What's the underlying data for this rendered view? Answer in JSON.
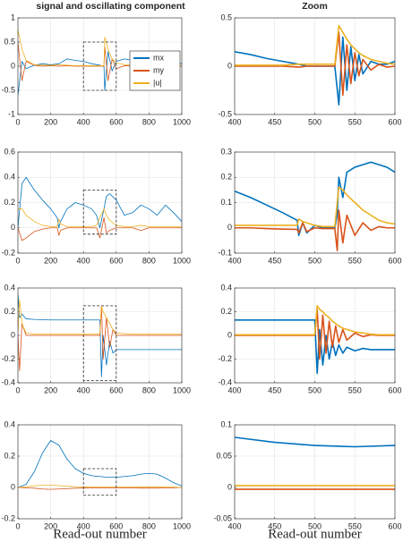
{
  "chart_data": [
    {
      "type": "line",
      "title": "signal and oscillating component",
      "legend": "east",
      "xlim": [
        0,
        1000
      ],
      "xticks": [
        0,
        200,
        400,
        600,
        800,
        1000
      ],
      "ylim": [
        -1,
        1
      ],
      "yticks": [
        -1,
        -0.5,
        0,
        0.5,
        1
      ],
      "grid": true,
      "zoom_box": {
        "x": [
          400,
          600
        ],
        "y": [
          -0.5,
          0.5
        ]
      },
      "x": [
        0,
        25,
        50,
        100,
        150,
        200,
        250,
        300,
        350,
        400,
        450,
        500,
        525,
        530,
        550,
        575,
        600,
        650,
        700,
        750,
        800,
        850,
        900,
        950,
        1000
      ],
      "series": [
        {
          "name": "mx",
          "color": "#0072BD",
          "values": [
            -0.6,
            0.1,
            -0.05,
            0.02,
            0.05,
            0.03,
            0.05,
            0.15,
            0.12,
            0.1,
            0.05,
            0.02,
            0.0,
            -0.5,
            0.3,
            -0.1,
            0.1,
            0.15,
            0.12,
            0.1,
            0.05,
            0.12,
            0.1,
            0.08,
            0.05
          ]
        },
        {
          "name": "my",
          "color": "#D95319",
          "values": [
            0.5,
            -0.3,
            0.1,
            0.02,
            0,
            0.01,
            0,
            0.01,
            0,
            0,
            0,
            0,
            0,
            0.4,
            -0.3,
            0.15,
            -0.05,
            0.01,
            0,
            0,
            0,
            0,
            0,
            0,
            0
          ]
        },
        {
          "name": "|u|",
          "color": "#EDB120",
          "values": [
            0.75,
            0.35,
            0.12,
            0.03,
            0.02,
            0.02,
            0.03,
            0.02,
            0.01,
            0.01,
            0.01,
            0.01,
            0.01,
            0.6,
            0.35,
            0.15,
            0.07,
            0.03,
            0.02,
            0.01,
            0.01,
            0.02,
            0.01,
            0.01,
            0.01
          ]
        }
      ]
    },
    {
      "type": "line",
      "title": "Zoom",
      "xlim": [
        400,
        600
      ],
      "xticks": [
        400,
        450,
        500,
        550,
        600
      ],
      "ylim": [
        -0.5,
        0.5
      ],
      "yticks": [
        -0.5,
        0,
        0.5
      ],
      "grid": true,
      "x": [
        400,
        420,
        440,
        460,
        480,
        490,
        500,
        510,
        520,
        525,
        530,
        535,
        540,
        545,
        550,
        555,
        560,
        570,
        580,
        590,
        600
      ],
      "series": [
        {
          "color": "#0072BD",
          "values": [
            0.15,
            0.12,
            0.08,
            0.05,
            0.02,
            0.0,
            0.0,
            0.0,
            0.0,
            0.0,
            -0.4,
            0.3,
            -0.25,
            0.2,
            -0.15,
            0.12,
            -0.08,
            0.05,
            0.02,
            0.02,
            0.05
          ]
        },
        {
          "color": "#D95319",
          "values": [
            0,
            0,
            0,
            0,
            -0.01,
            0,
            0,
            0,
            0,
            0,
            0.35,
            -0.3,
            0.22,
            -0.18,
            0.14,
            -0.1,
            0.07,
            -0.04,
            0.02,
            -0.01,
            0
          ]
        },
        {
          "color": "#EDB120",
          "values": [
            0.01,
            0.01,
            0.01,
            0.01,
            0.02,
            0.02,
            0.02,
            0.02,
            0.02,
            0.02,
            0.42,
            0.35,
            0.28,
            0.22,
            0.18,
            0.14,
            0.11,
            0.07,
            0.05,
            0.03,
            0.02
          ]
        }
      ]
    },
    {
      "type": "line",
      "xlim": [
        0,
        1000
      ],
      "xticks": [
        0,
        200,
        400,
        600,
        800,
        1000
      ],
      "ylim": [
        -0.2,
        0.6
      ],
      "yticks": [
        -0.2,
        0,
        0.2,
        0.4,
        0.6
      ],
      "grid": true,
      "zoom_box": {
        "x": [
          400,
          600
        ],
        "y": [
          -0.05,
          0.3
        ]
      },
      "x": [
        0,
        25,
        50,
        100,
        150,
        200,
        240,
        250,
        260,
        300,
        350,
        400,
        450,
        480,
        500,
        525,
        540,
        560,
        600,
        650,
        700,
        750,
        800,
        850,
        900,
        950,
        1000
      ],
      "series": [
        {
          "color": "#0072BD",
          "values": [
            0,
            0.35,
            0.4,
            0.3,
            0.22,
            0.15,
            0.08,
            0,
            0.05,
            0.15,
            0.2,
            0.18,
            0.15,
            0.1,
            0,
            0.15,
            0.25,
            0.27,
            0.22,
            0.1,
            0.12,
            0.18,
            0.15,
            0.1,
            0.18,
            0.12,
            0.05
          ]
        },
        {
          "color": "#D95319",
          "values": [
            0,
            -0.1,
            -0.08,
            -0.03,
            -0.01,
            0,
            0,
            -0.06,
            -0.02,
            0,
            0,
            0,
            0,
            0,
            -0.08,
            0.08,
            -0.04,
            -0.02,
            0,
            0,
            0,
            -0.02,
            0,
            0,
            0,
            0,
            0
          ]
        },
        {
          "color": "#EDB120",
          "values": [
            0.15,
            0.15,
            0.1,
            0.05,
            0.02,
            0.01,
            0.01,
            0.07,
            0.03,
            0.01,
            0.01,
            0.01,
            0.01,
            0.02,
            0.08,
            0.15,
            0.1,
            0.06,
            0.02,
            0.01,
            0.01,
            0.02,
            0.01,
            0.01,
            0.01,
            0.01,
            0.01
          ]
        }
      ]
    },
    {
      "type": "line",
      "xlim": [
        400,
        600
      ],
      "xticks": [
        400,
        450,
        500,
        550,
        600
      ],
      "ylim": [
        -0.1,
        0.3
      ],
      "yticks": [
        -0.1,
        0,
        0.1,
        0.2,
        0.3
      ],
      "grid": true,
      "x": [
        400,
        420,
        440,
        460,
        478,
        480,
        485,
        490,
        500,
        510,
        520,
        525,
        528,
        530,
        535,
        540,
        550,
        560,
        570,
        580,
        590,
        600
      ],
      "series": [
        {
          "color": "#0072BD",
          "values": [
            0.145,
            0.12,
            0.09,
            0.06,
            0.03,
            -0.03,
            0.02,
            -0.02,
            0.01,
            0,
            0,
            0,
            0.05,
            0.2,
            0.12,
            0.22,
            0.24,
            0.25,
            0.26,
            0.25,
            0.24,
            0.22
          ]
        },
        {
          "color": "#D95319",
          "values": [
            0,
            0,
            -0.003,
            -0.005,
            -0.006,
            -0.02,
            0.02,
            -0.015,
            0,
            -0.003,
            -0.003,
            -0.003,
            -0.09,
            0.07,
            -0.06,
            0.05,
            -0.03,
            0.02,
            -0.01,
            0.005,
            0,
            0
          ]
        },
        {
          "color": "#EDB120",
          "values": [
            0.01,
            0.01,
            0.01,
            0.01,
            0.01,
            0.035,
            0.025,
            0.02,
            0.01,
            0.005,
            0.005,
            0.005,
            0.1,
            0.16,
            0.15,
            0.13,
            0.1,
            0.07,
            0.05,
            0.03,
            0.02,
            0.015
          ]
        }
      ]
    },
    {
      "type": "line",
      "xlim": [
        0,
        1000
      ],
      "xticks": [
        0,
        200,
        400,
        600,
        800,
        1000
      ],
      "ylim": [
        -0.4,
        0.4
      ],
      "yticks": [
        -0.4,
        -0.2,
        0,
        0.2,
        0.4
      ],
      "grid": true,
      "zoom_box": {
        "x": [
          400,
          600
        ],
        "y": [
          -0.38,
          0.25
        ]
      },
      "x": [
        0,
        10,
        25,
        50,
        100,
        200,
        300,
        400,
        490,
        500,
        510,
        520,
        540,
        560,
        580,
        600,
        700,
        800,
        900,
        1000
      ],
      "series": [
        {
          "color": "#0072BD",
          "values": [
            0.35,
            0.15,
            0.18,
            0.14,
            0.135,
            0.13,
            0.13,
            0.13,
            0.13,
            0.13,
            -0.35,
            0,
            -0.25,
            -0.05,
            -0.15,
            -0.12,
            -0.12,
            -0.12,
            -0.12,
            -0.12
          ]
        },
        {
          "color": "#D95319",
          "values": [
            0,
            -0.3,
            0.1,
            0,
            0,
            0,
            0,
            0,
            0,
            0,
            0.25,
            -0.2,
            0.15,
            -0.1,
            0.05,
            0,
            0,
            0,
            0,
            0
          ]
        },
        {
          "color": "#EDB120",
          "values": [
            0.02,
            0.3,
            0.1,
            0.02,
            0.01,
            0.01,
            0.01,
            0.01,
            0.01,
            0.01,
            0.25,
            0.2,
            0.15,
            0.1,
            0.05,
            0.02,
            0.01,
            0.01,
            0.01,
            0.01
          ]
        }
      ]
    },
    {
      "type": "line",
      "xlim": [
        400,
        600
      ],
      "xticks": [
        400,
        450,
        500,
        550,
        600
      ],
      "ylim": [
        -0.4,
        0.4
      ],
      "yticks": [
        -0.4,
        -0.2,
        0,
        0.2,
        0.4
      ],
      "grid": true,
      "x": [
        400,
        450,
        500,
        503,
        506,
        510,
        514,
        518,
        522,
        526,
        530,
        535,
        540,
        550,
        560,
        570,
        580,
        590,
        600
      ],
      "series": [
        {
          "color": "#0072BD",
          "values": [
            0.13,
            0.13,
            0.13,
            -0.32,
            0.05,
            -0.25,
            0,
            -0.2,
            -0.05,
            -0.17,
            -0.08,
            -0.15,
            -0.1,
            -0.13,
            -0.11,
            -0.12,
            -0.12,
            -0.12,
            -0.12
          ]
        },
        {
          "color": "#D95319",
          "values": [
            0,
            0,
            0,
            0.22,
            -0.2,
            0.17,
            -0.15,
            0.12,
            -0.1,
            0.08,
            -0.06,
            0.05,
            -0.04,
            0.02,
            -0.01,
            0.005,
            0,
            0,
            0
          ]
        },
        {
          "color": "#EDB120",
          "values": [
            0.005,
            0.005,
            0.005,
            0.25,
            0.22,
            0.2,
            0.17,
            0.15,
            0.12,
            0.1,
            0.08,
            0.06,
            0.05,
            0.03,
            0.02,
            0.01,
            0.005,
            0.005,
            0.005
          ]
        }
      ]
    },
    {
      "type": "line",
      "x_label": "Read-out number",
      "xlim": [
        0,
        1000
      ],
      "xticks": [
        0,
        200,
        400,
        600,
        800,
        1000
      ],
      "ylim": [
        -0.2,
        0.4
      ],
      "yticks": [
        -0.2,
        0,
        0.2,
        0.4
      ],
      "grid": true,
      "zoom_box": {
        "x": [
          400,
          600
        ],
        "y": [
          -0.05,
          0.12
        ]
      },
      "x": [
        0,
        50,
        100,
        150,
        200,
        250,
        300,
        350,
        400,
        450,
        500,
        550,
        600,
        650,
        700,
        750,
        800,
        850,
        900,
        950,
        1000
      ],
      "series": [
        {
          "color": "#0072BD",
          "values": [
            0,
            0.02,
            0.1,
            0.22,
            0.3,
            0.27,
            0.18,
            0.12,
            0.09,
            0.075,
            0.07,
            0.065,
            0.065,
            0.07,
            0.075,
            0.085,
            0.09,
            0.085,
            0.06,
            0.03,
            0.01
          ]
        },
        {
          "color": "#D95319",
          "values": [
            0,
            -0.002,
            -0.005,
            -0.01,
            -0.012,
            -0.01,
            -0.008,
            -0.005,
            -0.004,
            -0.003,
            -0.003,
            -0.003,
            -0.003,
            -0.003,
            -0.003,
            -0.004,
            -0.004,
            -0.004,
            -0.003,
            -0.002,
            0
          ]
        },
        {
          "color": "#EDB120",
          "values": [
            0,
            0.005,
            0.01,
            0.015,
            0.015,
            0.012,
            0.008,
            0.005,
            0.004,
            0.003,
            0.003,
            0.003,
            0.003,
            0.003,
            0.003,
            0.004,
            0.004,
            0.004,
            0.003,
            0.002,
            0
          ]
        }
      ]
    },
    {
      "type": "line",
      "x_label": "Read-out number",
      "xlim": [
        400,
        600
      ],
      "xticks": [
        400,
        450,
        500,
        550,
        600
      ],
      "ylim": [
        -0.05,
        0.1
      ],
      "yticks": [
        -0.05,
        0,
        0.05,
        0.1
      ],
      "grid": true,
      "x": [
        400,
        450,
        500,
        550,
        600
      ],
      "series": [
        {
          "color": "#0072BD",
          "values": [
            0.08,
            0.072,
            0.067,
            0.065,
            0.067
          ]
        },
        {
          "color": "#D95319",
          "values": [
            -0.003,
            -0.003,
            -0.003,
            -0.003,
            -0.003
          ]
        },
        {
          "color": "#EDB120",
          "values": [
            0.003,
            0.003,
            0.003,
            0.003,
            0.003
          ]
        }
      ]
    }
  ]
}
